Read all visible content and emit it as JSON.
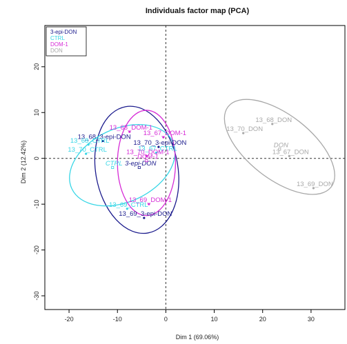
{
  "chart_data": {
    "type": "scatter",
    "title": "Individuals factor map (PCA)",
    "xlabel": "Dim 1 (69.06%)",
    "ylabel": "Dim 2 (12.42%)",
    "xlim": [
      -25,
      37
    ],
    "ylim": [
      -33,
      29
    ],
    "x_ticks": [
      -20,
      -10,
      0,
      10,
      20,
      30
    ],
    "y_ticks": [
      -30,
      -20,
      -10,
      0,
      10,
      20
    ],
    "reference_lines": {
      "x": 0,
      "y": 0,
      "style": "dashed"
    },
    "legend": {
      "position": "top-left",
      "entries": [
        {
          "name": "3-epi-DON",
          "color": "#1a1a8c"
        },
        {
          "name": "CTRL",
          "color": "#36d6e6"
        },
        {
          "name": "DOM-1",
          "color": "#d62ad6"
        },
        {
          "name": "DON",
          "color": "#a8a8a8"
        }
      ]
    },
    "series": [
      {
        "name": "3-epi-DON",
        "color": "#1a1a8c",
        "points": [
          {
            "label": "13_68_3-epi-DON",
            "x": -13.0,
            "y": 3.8
          },
          {
            "label": "13_70_3-epi-DON",
            "x": -1.5,
            "y": 2.5
          },
          {
            "label": "13_69_3-epi-DON",
            "x": -4.5,
            "y": -13.0
          }
        ],
        "centroid": {
          "label": "3-epi-DON",
          "x": -5.5,
          "y": -2.0
        },
        "ellipse": {
          "cx": -6.0,
          "cy": -2.5,
          "rx": 8.5,
          "ry": 14.0,
          "angle": 10
        }
      },
      {
        "name": "CTRL",
        "color": "#36d6e6",
        "points": [
          {
            "label": "13_68_CTRL",
            "x": -16.0,
            "y": 3.0
          },
          {
            "label": "13_70_CTRL",
            "x": -16.5,
            "y": 1.0
          },
          {
            "label": "13_67_CTRL",
            "x": -2.0,
            "y": 1.2
          },
          {
            "label": "13_69_CTRL",
            "x": -8.0,
            "y": -11.0
          }
        ],
        "centroid": {
          "label": "CTRL",
          "x": -11.0,
          "y": -2.0
        },
        "ellipse": {
          "cx": -9.0,
          "cy": -1.5,
          "rx": 11.5,
          "ry": 8.0,
          "angle": 25
        }
      },
      {
        "name": "DOM-1",
        "color": "#d62ad6",
        "points": [
          {
            "label": "13_68_DOM-1",
            "x": -7.5,
            "y": 5.8
          },
          {
            "label": "13_67_DOM-1",
            "x": -0.5,
            "y": 4.6
          },
          {
            "label": "13_70_DOM-1",
            "x": -4.0,
            "y": 0.5
          },
          {
            "label": "13_69_DOM-1",
            "x": -3.5,
            "y": -10.0
          }
        ],
        "centroid": {
          "label": "DOM-1",
          "x": -4.0,
          "y": -0.5
        },
        "ellipse": {
          "cx": -4.0,
          "cy": -1.0,
          "rx": 6.0,
          "ry": 11.5,
          "angle": 0
        }
      },
      {
        "name": "DON",
        "color": "#a8a8a8",
        "points": [
          {
            "label": "13_68_DON",
            "x": 22.0,
            "y": 7.5
          },
          {
            "label": "13_70_DON",
            "x": 16.0,
            "y": 5.5
          },
          {
            "label": "13_67_DON",
            "x": 25.5,
            "y": 0.5
          },
          {
            "label": "13_69_DON",
            "x": 30.5,
            "y": -6.5
          }
        ],
        "centroid": {
          "label": "DON",
          "x": 23.5,
          "y": 2.0
        },
        "ellipse": {
          "cx": 23.5,
          "cy": 2.5,
          "rx": 13.5,
          "ry": 7.0,
          "angle": -38
        }
      }
    ]
  }
}
